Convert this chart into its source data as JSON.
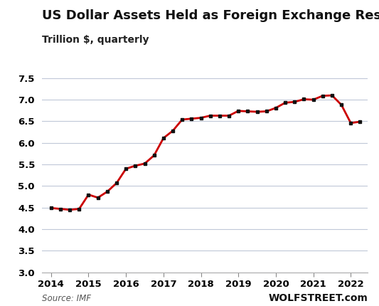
{
  "title": "US Dollar Assets Held as Foreign Exchange Reserves",
  "subtitle": "Trillion $, quarterly",
  "source_text": "Source: IMF",
  "watermark": "WOLFSTREET.com",
  "x_values": [
    2014.0,
    2014.25,
    2014.5,
    2014.75,
    2015.0,
    2015.25,
    2015.5,
    2015.75,
    2016.0,
    2016.25,
    2016.5,
    2016.75,
    2017.0,
    2017.25,
    2017.5,
    2017.75,
    2018.0,
    2018.25,
    2018.5,
    2018.75,
    2019.0,
    2019.25,
    2019.5,
    2019.75,
    2020.0,
    2020.25,
    2020.5,
    2020.75,
    2021.0,
    2021.25,
    2021.5,
    2021.75,
    2022.0,
    2022.25
  ],
  "y_values": [
    4.49,
    4.47,
    4.45,
    4.47,
    4.8,
    4.73,
    4.87,
    5.07,
    5.4,
    5.47,
    5.52,
    5.71,
    6.11,
    6.28,
    6.54,
    6.56,
    6.58,
    6.63,
    6.63,
    6.63,
    6.74,
    6.73,
    6.72,
    6.73,
    6.81,
    6.93,
    6.95,
    7.01,
    7.0,
    7.09,
    7.1,
    6.88,
    6.46,
    6.49
  ],
  "line_color": "#cc0000",
  "marker_color": "#111111",
  "background_color": "#ffffff",
  "grid_color": "#c0c8d8",
  "ylim": [
    3.0,
    7.75
  ],
  "yticks": [
    3.0,
    3.5,
    4.0,
    4.5,
    5.0,
    5.5,
    6.0,
    6.5,
    7.0,
    7.5
  ],
  "xlim": [
    2013.75,
    2022.45
  ],
  "xticks": [
    2014,
    2015,
    2016,
    2017,
    2018,
    2019,
    2020,
    2021,
    2022
  ],
  "title_fontsize": 13,
  "subtitle_fontsize": 10,
  "tick_fontsize": 9.5,
  "source_fontsize": 8.5,
  "watermark_fontsize": 10
}
